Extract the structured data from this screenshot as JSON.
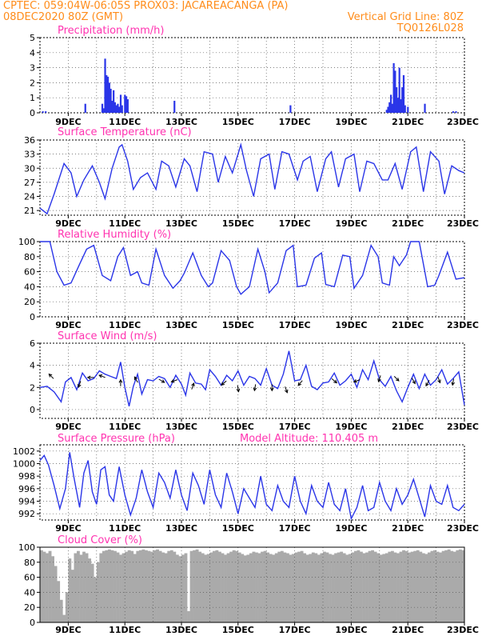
{
  "header": {
    "left_line1": "CPTEC:   059:04W-06:05S   PROX03: JACAREACANGA (PA)",
    "left_line2": "08DEC2020 80Z (GMT)",
    "right_line1": "Vertical Grid Line: 80Z",
    "right_line2": "TQ0126L028"
  },
  "colors": {
    "header": "#ff8c1a",
    "panel_title": "#ff33b0",
    "series": "#2a35e8",
    "arrows": "#000000",
    "cloud": "#aaaaaa"
  },
  "x_axis": {
    "start": 8.0,
    "end": 23.0,
    "tick_labels": [
      "9DEC",
      "11DEC",
      "13DEC",
      "15DEC",
      "17DEC",
      "19DEC",
      "21DEC",
      "23DEC"
    ],
    "tick_days": [
      9,
      11,
      13,
      15,
      17,
      19,
      21,
      23
    ],
    "grid_days": [
      9,
      10,
      11,
      12,
      13,
      14,
      15,
      16,
      17,
      18,
      19,
      20,
      21,
      22,
      23
    ]
  },
  "chart_data": [
    {
      "type": "bar",
      "title": "Precipitation (mm/h)",
      "ylim": [
        0,
        5
      ],
      "yticks": [
        0,
        1,
        2,
        3,
        4,
        5
      ],
      "x": [
        8.1,
        8.2,
        9.6,
        10.2,
        10.25,
        10.3,
        10.35,
        10.4,
        10.45,
        10.5,
        10.55,
        10.6,
        10.65,
        10.7,
        10.75,
        10.8,
        10.85,
        10.9,
        11.0,
        11.05,
        11.1,
        12.75,
        16.85,
        20.25,
        20.3,
        20.35,
        20.4,
        20.45,
        20.5,
        20.55,
        20.6,
        20.65,
        20.7,
        20.75,
        20.8,
        20.85,
        20.9,
        21.0,
        21.6,
        22.6,
        22.7
      ],
      "values": [
        0.1,
        0.1,
        0.6,
        0.6,
        0.3,
        3.6,
        2.5,
        2.4,
        2.0,
        1.6,
        0.8,
        1.5,
        0.7,
        0.5,
        0.6,
        0.4,
        1.2,
        0.5,
        1.2,
        1.1,
        0.9,
        0.8,
        0.5,
        0.2,
        0.4,
        0.7,
        1.2,
        0.6,
        3.3,
        2.8,
        1.7,
        1.0,
        3.0,
        0.9,
        1.7,
        2.5,
        0.5,
        0.4,
        0.6,
        0.1,
        0.1
      ]
    },
    {
      "type": "line",
      "title": "Surface Temperature (nC)",
      "ylim": [
        20,
        36
      ],
      "yticks": [
        21,
        24,
        27,
        30,
        33,
        36
      ],
      "x": [
        8.0,
        8.25,
        8.5,
        8.85,
        9.1,
        9.3,
        9.55,
        9.85,
        10.1,
        10.3,
        10.55,
        10.8,
        10.9,
        11.1,
        11.3,
        11.55,
        11.8,
        12.1,
        12.3,
        12.55,
        12.8,
        13.1,
        13.3,
        13.55,
        13.8,
        14.1,
        14.3,
        14.55,
        14.8,
        15.1,
        15.3,
        15.55,
        15.8,
        16.1,
        16.3,
        16.55,
        16.8,
        17.1,
        17.3,
        17.55,
        17.8,
        18.1,
        18.3,
        18.55,
        18.8,
        19.1,
        19.3,
        19.55,
        19.8,
        20.1,
        20.3,
        20.55,
        20.8,
        21.1,
        21.3,
        21.55,
        21.8,
        22.1,
        22.3,
        22.55,
        22.8,
        23.0
      ],
      "values": [
        21.5,
        20.3,
        24.5,
        31.0,
        29.0,
        24.0,
        27.5,
        30.5,
        27.0,
        23.5,
        30.0,
        34.5,
        35.0,
        31.5,
        25.5,
        28.0,
        29.0,
        25.5,
        31.5,
        30.5,
        26.0,
        32.0,
        30.5,
        25.0,
        33.5,
        33.0,
        27.0,
        32.5,
        29.0,
        35.0,
        29.5,
        24.0,
        32.0,
        33.0,
        25.5,
        33.5,
        33.0,
        27.5,
        31.5,
        32.5,
        25.0,
        32.0,
        33.5,
        26.0,
        32.0,
        33.0,
        25.0,
        31.5,
        31.0,
        27.5,
        27.5,
        31.0,
        25.5,
        33.5,
        34.5,
        25.0,
        33.5,
        31.5,
        24.5,
        30.5,
        29.5,
        29.0
      ]
    },
    {
      "type": "line",
      "title": "Relative Humidity (%)",
      "ylim": [
        0,
        100
      ],
      "yticks": [
        0,
        20,
        40,
        60,
        80,
        100
      ],
      "x": [
        8.0,
        8.35,
        8.6,
        8.85,
        9.1,
        9.4,
        9.65,
        9.9,
        10.2,
        10.5,
        10.75,
        10.95,
        11.2,
        11.45,
        11.6,
        11.85,
        12.1,
        12.4,
        12.7,
        12.95,
        13.1,
        13.4,
        13.7,
        13.95,
        14.1,
        14.4,
        14.7,
        14.95,
        15.1,
        15.4,
        15.7,
        15.95,
        16.1,
        16.4,
        16.7,
        16.95,
        17.1,
        17.4,
        17.7,
        17.95,
        18.1,
        18.4,
        18.7,
        18.95,
        19.1,
        19.4,
        19.7,
        19.95,
        20.1,
        20.35,
        20.5,
        20.7,
        20.95,
        21.1,
        21.4,
        21.7,
        21.95,
        22.1,
        22.4,
        22.7,
        23.0
      ],
      "values": [
        100,
        100,
        60,
        42,
        45,
        70,
        90,
        95,
        55,
        48,
        80,
        92,
        55,
        60,
        45,
        42,
        90,
        55,
        38,
        48,
        58,
        85,
        55,
        40,
        45,
        88,
        75,
        40,
        30,
        40,
        90,
        60,
        32,
        45,
        88,
        95,
        40,
        42,
        78,
        85,
        43,
        40,
        82,
        80,
        38,
        55,
        95,
        80,
        45,
        42,
        80,
        68,
        82,
        100,
        100,
        40,
        42,
        55,
        86,
        50,
        52
      ]
    },
    {
      "type": "line",
      "title": "Surface Wind (m/s)",
      "ylim": [
        -0.8,
        6
      ],
      "yticks": [
        0,
        2,
        4,
        6
      ],
      "x": [
        8.0,
        8.25,
        8.5,
        8.75,
        8.9,
        9.1,
        9.3,
        9.5,
        9.7,
        9.9,
        10.1,
        10.3,
        10.5,
        10.7,
        10.85,
        11.0,
        11.15,
        11.3,
        11.45,
        11.6,
        11.8,
        12.0,
        12.2,
        12.4,
        12.6,
        12.8,
        13.0,
        13.15,
        13.3,
        13.5,
        13.7,
        13.85,
        14.0,
        14.2,
        14.4,
        14.6,
        14.8,
        15.0,
        15.2,
        15.4,
        15.6,
        15.8,
        16.0,
        16.2,
        16.4,
        16.6,
        16.8,
        17.0,
        17.2,
        17.4,
        17.6,
        17.8,
        18.0,
        18.2,
        18.4,
        18.6,
        18.8,
        19.0,
        19.2,
        19.4,
        19.6,
        19.8,
        20.0,
        20.2,
        20.4,
        20.6,
        20.8,
        21.0,
        21.2,
        21.4,
        21.6,
        21.8,
        22.0,
        22.2,
        22.4,
        22.6,
        22.8,
        23.0
      ],
      "values": [
        2.0,
        2.1,
        1.6,
        0.7,
        2.5,
        2.9,
        1.8,
        3.3,
        2.6,
        2.8,
        3.5,
        3.2,
        3.0,
        2.8,
        4.3,
        2.0,
        0.3,
        2.1,
        3.2,
        1.4,
        2.7,
        2.6,
        3.0,
        2.8,
        2.0,
        3.1,
        2.3,
        1.3,
        3.3,
        2.4,
        2.3,
        1.8,
        3.6,
        3.0,
        2.2,
        3.1,
        2.6,
        3.5,
        2.2,
        3.0,
        2.8,
        2.2,
        3.7,
        2.2,
        1.9,
        3.2,
        5.3,
        2.6,
        2.7,
        4.0,
        2.1,
        1.8,
        2.4,
        2.5,
        3.3,
        2.2,
        2.6,
        3.2,
        2.0,
        3.6,
        2.7,
        4.4,
        2.7,
        2.1,
        3.0,
        1.7,
        0.7,
        2.0,
        3.2,
        1.9,
        3.2,
        2.2,
        2.7,
        3.6,
        2.3,
        2.8,
        3.4,
        0.4
      ],
      "arrows": [
        {
          "x": 8.4,
          "y": 3.0,
          "angle": 135
        },
        {
          "x": 9.4,
          "y": 2.3,
          "angle": 250
        },
        {
          "x": 9.8,
          "y": 2.9,
          "angle": 180
        },
        {
          "x": 10.2,
          "y": 3.0,
          "angle": 160
        },
        {
          "x": 10.85,
          "y": 2.4,
          "angle": 90
        },
        {
          "x": 11.4,
          "y": 2.7,
          "angle": 120
        },
        {
          "x": 12.3,
          "y": 2.6,
          "angle": 330
        },
        {
          "x": 12.75,
          "y": 2.6,
          "angle": 200
        },
        {
          "x": 13.4,
          "y": 2.1,
          "angle": 70
        },
        {
          "x": 14.5,
          "y": 2.4,
          "angle": 220
        },
        {
          "x": 15.0,
          "y": 1.9,
          "angle": 280
        },
        {
          "x": 15.6,
          "y": 2.0,
          "angle": 260
        },
        {
          "x": 16.2,
          "y": 2.0,
          "angle": 270
        },
        {
          "x": 16.7,
          "y": 1.8,
          "angle": 290
        },
        {
          "x": 17.2,
          "y": 2.4,
          "angle": 230
        },
        {
          "x": 18.4,
          "y": 2.6,
          "angle": 320
        },
        {
          "x": 19.2,
          "y": 2.6,
          "angle": 200
        },
        {
          "x": 20.0,
          "y": 2.8,
          "angle": 250
        },
        {
          "x": 20.6,
          "y": 2.8,
          "angle": 315
        },
        {
          "x": 21.2,
          "y": 2.6,
          "angle": 300
        },
        {
          "x": 21.7,
          "y": 2.4,
          "angle": 240
        },
        {
          "x": 22.1,
          "y": 2.7,
          "angle": 290
        },
        {
          "x": 22.6,
          "y": 2.5,
          "angle": 260
        }
      ]
    },
    {
      "type": "line",
      "title": "Surface Pressure (hPa)",
      "annotation": "Model Altitude: 110.405 m",
      "ylim": [
        991,
        1003
      ],
      "yticks": [
        992,
        994,
        996,
        998,
        1000,
        1002
      ],
      "x": [
        8.0,
        8.15,
        8.3,
        8.5,
        8.7,
        8.9,
        9.05,
        9.2,
        9.4,
        9.55,
        9.7,
        9.85,
        10.0,
        10.15,
        10.3,
        10.45,
        10.6,
        10.8,
        11.0,
        11.2,
        11.4,
        11.6,
        11.8,
        12.0,
        12.2,
        12.4,
        12.6,
        12.8,
        13.0,
        13.2,
        13.4,
        13.6,
        13.8,
        14.0,
        14.2,
        14.4,
        14.6,
        14.8,
        15.0,
        15.2,
        15.4,
        15.6,
        15.8,
        16.0,
        16.2,
        16.4,
        16.6,
        16.8,
        17.0,
        17.2,
        17.4,
        17.6,
        17.8,
        18.0,
        18.2,
        18.4,
        18.6,
        18.8,
        19.0,
        19.2,
        19.4,
        19.6,
        19.8,
        20.0,
        20.2,
        20.4,
        20.6,
        20.8,
        21.0,
        21.2,
        21.4,
        21.6,
        21.8,
        22.0,
        22.2,
        22.4,
        22.6,
        22.8,
        23.0
      ],
      "values": [
        1000.5,
        1001.3,
        999.8,
        996.5,
        992.8,
        996.0,
        1001.8,
        997.8,
        993.0,
        998.5,
        1000.5,
        995.5,
        993.5,
        999.0,
        999.5,
        995.0,
        994.0,
        999.5,
        995.0,
        991.8,
        994.5,
        999.0,
        995.5,
        993.0,
        998.5,
        997.0,
        994.5,
        999.0,
        995.0,
        992.5,
        998.5,
        996.5,
        993.5,
        999.0,
        995.0,
        993.0,
        998.5,
        995.5,
        992.0,
        996.0,
        994.5,
        993.0,
        998.0,
        993.5,
        992.5,
        996.5,
        994.0,
        993.0,
        998.0,
        994.0,
        992.0,
        996.5,
        994.0,
        993.0,
        997.0,
        993.5,
        992.5,
        996.0,
        991.2,
        993.0,
        996.5,
        992.5,
        993.0,
        997.0,
        994.0,
        992.5,
        996.0,
        993.5,
        995.0,
        997.5,
        994.5,
        991.5,
        996.5,
        994.0,
        993.5,
        996.5,
        993.0,
        992.5,
        993.5
      ]
    },
    {
      "type": "bar",
      "title": "Cloud Cover (%)",
      "ylim": [
        0,
        100
      ],
      "yticks": [
        0,
        20,
        40,
        60,
        80,
        100
      ],
      "x": [
        8.0,
        8.1,
        8.2,
        8.3,
        8.4,
        8.5,
        8.6,
        8.7,
        8.8,
        8.9,
        9.0,
        9.1,
        9.2,
        9.3,
        9.4,
        9.5,
        9.6,
        9.7,
        9.8,
        9.9,
        10.0,
        10.1,
        10.2,
        10.3,
        10.4,
        10.5,
        10.6,
        10.7,
        10.8,
        10.9,
        11.0,
        11.1,
        11.2,
        11.3,
        11.4,
        11.5,
        11.6,
        11.7,
        11.8,
        11.9,
        12.0,
        12.1,
        12.2,
        12.3,
        12.4,
        12.5,
        12.6,
        12.7,
        12.8,
        12.9,
        13.0,
        13.1,
        13.2,
        13.3,
        13.4,
        13.5,
        13.6,
        13.7,
        13.8,
        13.9,
        14.0,
        14.1,
        14.2,
        14.3,
        14.4,
        14.5,
        14.6,
        14.7,
        14.8,
        14.9,
        15.0,
        15.1,
        15.2,
        15.3,
        15.4,
        15.5,
        15.6,
        15.7,
        15.8,
        15.9,
        16.0,
        16.1,
        16.2,
        16.3,
        16.4,
        16.5,
        16.6,
        16.7,
        16.8,
        16.9,
        17.0,
        17.1,
        17.2,
        17.3,
        17.4,
        17.5,
        17.6,
        17.7,
        17.8,
        17.9,
        18.0,
        18.1,
        18.2,
        18.3,
        18.4,
        18.5,
        18.6,
        18.7,
        18.8,
        18.9,
        19.0,
        19.1,
        19.2,
        19.3,
        19.4,
        19.5,
        19.6,
        19.7,
        19.8,
        19.9,
        20.0,
        20.1,
        20.2,
        20.3,
        20.4,
        20.5,
        20.6,
        20.7,
        20.8,
        20.9,
        21.0,
        21.1,
        21.2,
        21.3,
        21.4,
        21.5,
        21.6,
        21.7,
        21.8,
        21.9,
        22.0,
        22.1,
        22.2,
        22.3,
        22.4,
        22.5,
        22.6,
        22.7,
        22.8,
        22.9
      ],
      "values": [
        96,
        94,
        92,
        95,
        88,
        75,
        55,
        30,
        10,
        40,
        85,
        70,
        92,
        95,
        90,
        94,
        92,
        85,
        78,
        60,
        80,
        92,
        95,
        96,
        97,
        96,
        95,
        93,
        90,
        92,
        94,
        96,
        95,
        91,
        95,
        96,
        97,
        96,
        95,
        94,
        96,
        97,
        95,
        93,
        92,
        95,
        96,
        94,
        90,
        88,
        90,
        92,
        15,
        95,
        96,
        97,
        94,
        92,
        90,
        91,
        93,
        95,
        96,
        94,
        92,
        90,
        92,
        94,
        96,
        95,
        93,
        91,
        89,
        90,
        92,
        94,
        93,
        92,
        94,
        95,
        93,
        91,
        90,
        92,
        94,
        95,
        93,
        92,
        90,
        91,
        93,
        94,
        95,
        92,
        90,
        91,
        93,
        92,
        90,
        92,
        94,
        93,
        91,
        90,
        92,
        93,
        94,
        92,
        90,
        91,
        93,
        95,
        96,
        94,
        92,
        93,
        95,
        96,
        94,
        92,
        90,
        91,
        92,
        94,
        95,
        93,
        92,
        94,
        96,
        95,
        93,
        94,
        95,
        96,
        94,
        92,
        91,
        93,
        95,
        96,
        94,
        93,
        95,
        96,
        97,
        95,
        94,
        96,
        97,
        96
      ]
    }
  ]
}
